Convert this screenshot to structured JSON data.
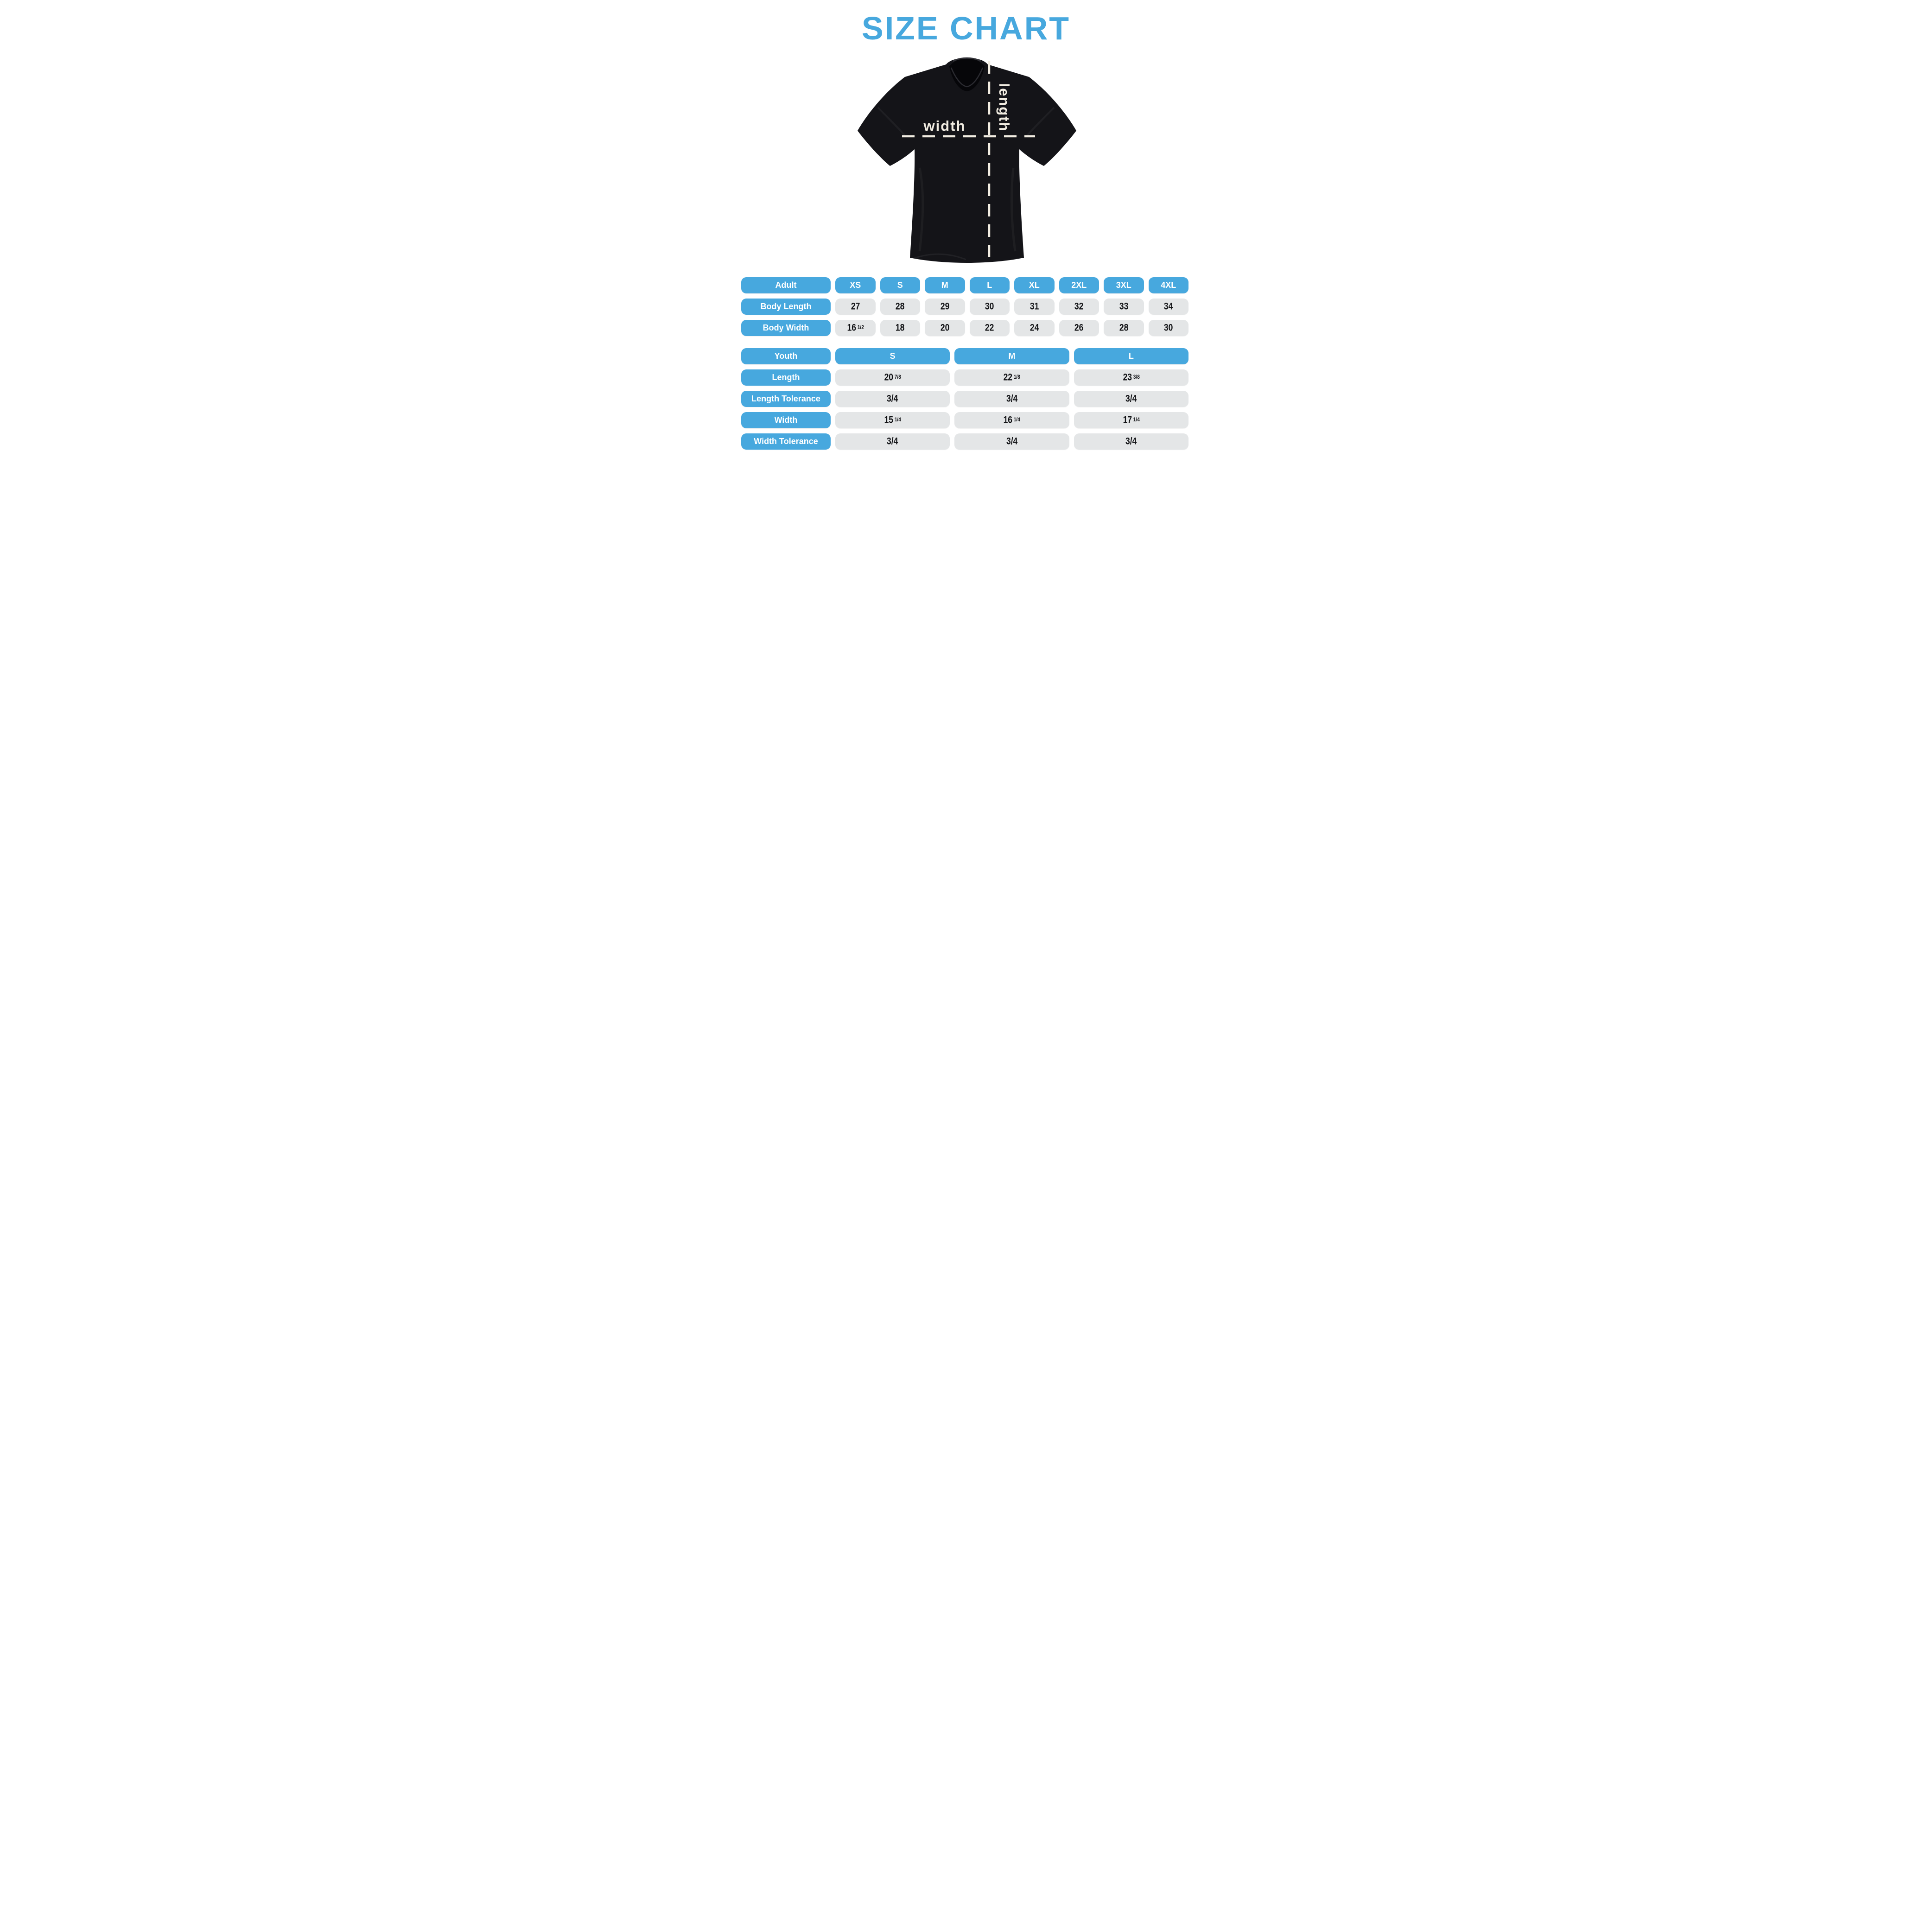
{
  "title": "SIZE CHART",
  "shirt": {
    "width_label": "width",
    "length_label": "length"
  },
  "adult_table": {
    "header": [
      "Adult",
      "XS",
      "S",
      "M",
      "L",
      "XL",
      "2XL",
      "3XL",
      "4XL"
    ],
    "rows": [
      {
        "label": "Body Length",
        "values": [
          "27",
          "28",
          "29",
          "30",
          "31",
          "32",
          "33",
          "34"
        ]
      },
      {
        "label": "Body Width",
        "values": [
          "16 1/2",
          "18",
          "20",
          "22",
          "24",
          "26",
          "28",
          "30"
        ]
      }
    ]
  },
  "youth_table": {
    "header": [
      "Youth",
      "S",
      "M",
      "L"
    ],
    "rows": [
      {
        "label": "Length",
        "values": [
          "20 7/8",
          "22 1/8",
          "23 3/8"
        ]
      },
      {
        "label": "Length Tolerance",
        "values": [
          "3/4",
          "3/4",
          "3/4"
        ]
      },
      {
        "label": "Width",
        "values": [
          "15 1/4",
          "16 1/4",
          "17 1/4"
        ]
      },
      {
        "label": "Width Tolerance",
        "values": [
          "3/4",
          "3/4",
          "3/4"
        ]
      }
    ]
  },
  "colors": {
    "accent_blue": "#47A8DE",
    "pill_gray_bg": "#E4E6E7",
    "value_text": "#121316",
    "measure_cream": "#F2EDE2",
    "shirt_black": "#141418"
  }
}
